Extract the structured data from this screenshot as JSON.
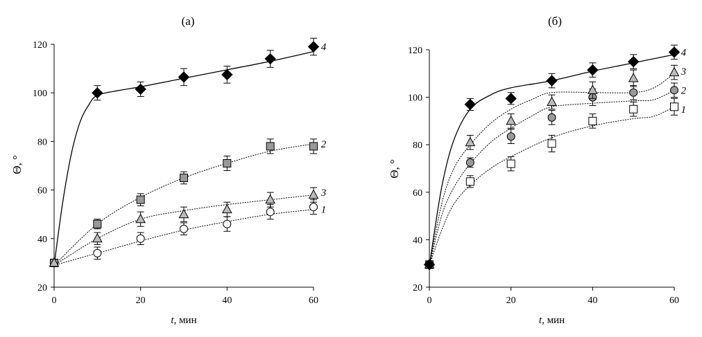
{
  "chart_data": [
    {
      "type": "scatter",
      "title": "(а)",
      "xlabel_var": "t",
      "xlabel_unit": ", мин",
      "ylabel": "Θ, °",
      "xlim": [
        0,
        60
      ],
      "ylim": [
        20,
        120
      ],
      "xticks": [
        0,
        20,
        40,
        60
      ],
      "yticks": [
        20,
        40,
        60,
        80,
        100,
        120
      ],
      "series": [
        {
          "name": "1",
          "marker": "circle",
          "fill": "#ffffff",
          "line": "dashed",
          "x": [
            0,
            10,
            20,
            30,
            40,
            50,
            60
          ],
          "y": [
            30,
            34,
            40,
            44,
            46,
            51,
            53
          ],
          "err": [
            1.5,
            2.5,
            2.5,
            2.5,
            3,
            3,
            3
          ],
          "fit": [
            [
              0,
              29
            ],
            [
              10,
              34
            ],
            [
              20,
              39
            ],
            [
              30,
              43.5
            ],
            [
              40,
              47
            ],
            [
              50,
              50
            ],
            [
              60,
              52
            ]
          ]
        },
        {
          "name": "2",
          "marker": "square",
          "fill": "#999999",
          "line": "dashed",
          "x": [
            0,
            10,
            20,
            30,
            40,
            50,
            60
          ],
          "y": [
            30,
            46,
            56,
            65,
            71,
            78,
            78
          ],
          "err": [
            1.5,
            2,
            2.5,
            2.5,
            3,
            3,
            3
          ],
          "fit": [
            [
              0,
              29
            ],
            [
              10,
              46
            ],
            [
              20,
              57
            ],
            [
              30,
              65
            ],
            [
              40,
              71
            ],
            [
              50,
              76
            ],
            [
              60,
              79
            ]
          ]
        },
        {
          "name": "3",
          "marker": "triangle",
          "fill": "#bbbbbb",
          "line": "dashed",
          "x": [
            0,
            10,
            20,
            30,
            40,
            50,
            60
          ],
          "y": [
            30,
            40,
            48,
            50,
            52,
            56,
            58
          ],
          "err": [
            1.5,
            2.5,
            3,
            3,
            3,
            3,
            3
          ],
          "fit": [
            [
              0,
              29
            ],
            [
              10,
              40
            ],
            [
              20,
              48
            ],
            [
              30,
              51.5
            ],
            [
              40,
              54
            ],
            [
              50,
              56
            ],
            [
              60,
              58
            ]
          ]
        },
        {
          "name": "4",
          "marker": "diamond",
          "fill": "#000000",
          "line": "solid",
          "x": [
            10,
            20,
            30,
            40,
            50,
            60
          ],
          "y": [
            100,
            101.5,
            106.5,
            107.5,
            114,
            119
          ],
          "err": [
            3,
            3,
            3.5,
            3.5,
            3.5,
            3.5
          ],
          "fit": [
            [
              0,
              29
            ],
            [
              2,
              55
            ],
            [
              4,
              75
            ],
            [
              6,
              88
            ],
            [
              8,
              95
            ],
            [
              10,
              99
            ],
            [
              15,
              101
            ],
            [
              20,
              102.5
            ],
            [
              30,
              106
            ],
            [
              40,
              109.5
            ],
            [
              50,
              113
            ],
            [
              60,
              117
            ]
          ]
        }
      ],
      "label_positions": [
        {
          "name": "4",
          "x": 63,
          "y": 119
        },
        {
          "name": "2",
          "x": 63,
          "y": 79
        },
        {
          "name": "3",
          "x": 63,
          "y": 59
        },
        {
          "name": "1",
          "x": 63,
          "y": 52
        }
      ]
    },
    {
      "type": "scatter",
      "title": "(б)",
      "xlabel_var": "t",
      "xlabel_unit": ", мин",
      "ylabel": "Θ, °",
      "xlim": [
        0,
        60
      ],
      "ylim": [
        20,
        120
      ],
      "xticks": [
        0,
        20,
        40,
        60
      ],
      "yticks": [
        20,
        40,
        60,
        80,
        100,
        120
      ],
      "series": [
        {
          "name": "1",
          "marker": "square",
          "fill": "#ffffff",
          "line": "dashed",
          "x": [
            0,
            10,
            20,
            30,
            40,
            50,
            60
          ],
          "y": [
            29.5,
            64.5,
            72,
            80.5,
            90,
            95,
            96
          ],
          "err": [
            1.5,
            2.5,
            3,
            3.5,
            3,
            3,
            3.5
          ],
          "fit": [
            [
              0,
              29
            ],
            [
              3,
              44
            ],
            [
              6,
              55
            ],
            [
              10,
              63
            ],
            [
              15,
              70
            ],
            [
              20,
              75
            ],
            [
              30,
              83
            ],
            [
              40,
              88
            ],
            [
              50,
              91
            ],
            [
              55,
              92
            ],
            [
              60,
              96
            ]
          ]
        },
        {
          "name": "2",
          "marker": "circle",
          "fill": "#999999",
          "line": "dashed",
          "x": [
            0,
            10,
            20,
            30,
            40,
            50,
            60
          ],
          "y": [
            29.5,
            72.5,
            83.5,
            91.5,
            100,
            102,
            103
          ],
          "err": [
            1.5,
            2,
            3,
            3,
            3.5,
            3,
            3
          ],
          "fit": [
            [
              0,
              29
            ],
            [
              3,
              50
            ],
            [
              6,
              62
            ],
            [
              10,
              72
            ],
            [
              15,
              81
            ],
            [
              20,
              87
            ],
            [
              25,
              92
            ],
            [
              30,
              96
            ],
            [
              40,
              97.5
            ],
            [
              50,
              98.5
            ],
            [
              55,
              99
            ],
            [
              60,
              103
            ]
          ]
        },
        {
          "name": "3",
          "marker": "triangle",
          "fill": "#bbbbbb",
          "line": "dashed",
          "x": [
            0,
            10,
            20,
            30,
            40,
            50,
            60
          ],
          "y": [
            29.5,
            81,
            90,
            98,
            103,
            108,
            110.5
          ],
          "err": [
            1.5,
            3,
            3,
            3,
            3.5,
            3.5,
            3
          ],
          "fit": [
            [
              0,
              29
            ],
            [
              3,
              55
            ],
            [
              6,
              70
            ],
            [
              10,
              80
            ],
            [
              15,
              89
            ],
            [
              20,
              95
            ],
            [
              25,
              99
            ],
            [
              30,
              102
            ],
            [
              40,
              102
            ],
            [
              50,
              102
            ],
            [
              55,
              104
            ],
            [
              60,
              110
            ]
          ]
        },
        {
          "name": "4",
          "marker": "diamond",
          "fill": "#000000",
          "line": "solid",
          "x": [
            0,
            10,
            20,
            30,
            40,
            50,
            60
          ],
          "y": [
            29.5,
            97,
            99.5,
            107,
            111.5,
            115,
            119
          ],
          "err": [
            1.5,
            2.5,
            2.5,
            3,
            3,
            3,
            3
          ],
          "fit": [
            [
              0,
              29
            ],
            [
              3,
              62
            ],
            [
              6,
              82
            ],
            [
              10,
              95
            ],
            [
              15,
              101
            ],
            [
              20,
              104
            ],
            [
              30,
              107
            ],
            [
              40,
              111
            ],
            [
              50,
              114.5
            ],
            [
              60,
              118
            ]
          ]
        }
      ],
      "label_positions": [
        {
          "name": "4",
          "x": 63,
          "y": 119
        },
        {
          "name": "3",
          "x": 63,
          "y": 111
        },
        {
          "name": "2",
          "x": 63,
          "y": 103
        },
        {
          "name": "1",
          "x": 63,
          "y": 95
        }
      ]
    }
  ]
}
